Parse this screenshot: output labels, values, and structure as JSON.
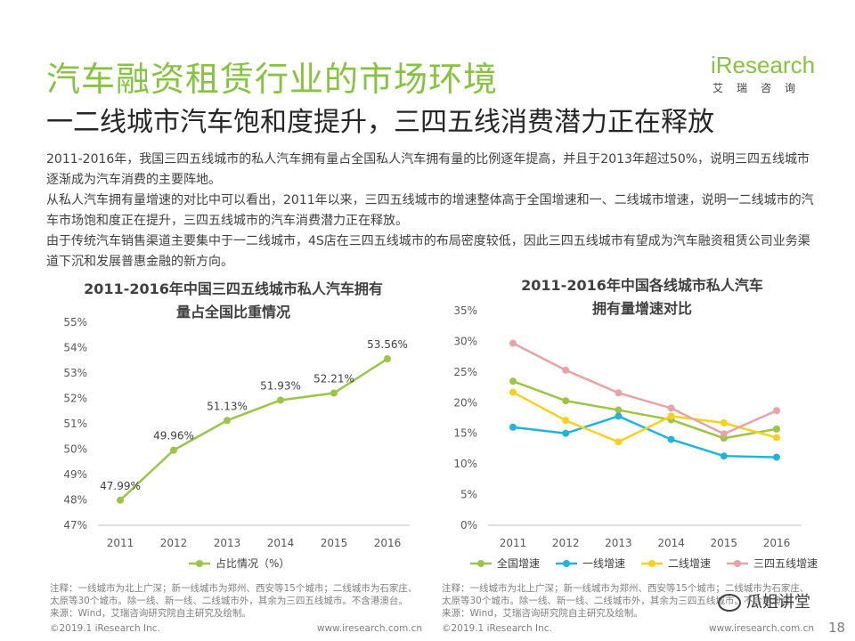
{
  "header": {
    "title": "汽车融资租赁行业的市场环境",
    "subtitle": "一二线城市汽车饱和度提升，三四五线消费潜力正在释放"
  },
  "logo": {
    "name": "iResearch",
    "sub": "艾瑞咨询",
    "brand_color": "#86c33e"
  },
  "paragraphs": [
    "2011-2016年，我国三四五线城市的私人汽车拥有量占全国私人汽车拥有量的比例逐年提高，并且于2013年超过50%，说明三四五线城市逐渐成为汽车消费的主要阵地。",
    "从私人汽车拥有量增速的对比中可以看出，2011年以来，三四五线城市的增速整体高于全国增速和一、二线城市增速，说明一二线城市的汽车市场饱和度正在提升，三四五线城市的汽车消费潜力正在释放。",
    "由于传统汽车销售渠道主要集中于一二线城市，4S店在三四五线城市的布局密度较低，因此三四五线城市有望成为汽车融资租赁公司业务渠道下沉和发展普惠金融的新方向。"
  ],
  "chart_data": [
    {
      "type": "line",
      "title_lines": [
        "2011-2016年中国三四五线城市私人汽车拥有",
        "量占全国比重情况"
      ],
      "x": [
        "2011",
        "2012",
        "2013",
        "2014",
        "2015",
        "2016"
      ],
      "series": [
        {
          "name": "占比情况（%）",
          "color": "#9dc545",
          "values": [
            47.99,
            49.96,
            51.13,
            51.93,
            52.21,
            53.56
          ],
          "labels": [
            "47.99%",
            "49.96%",
            "51.13%",
            "51.93%",
            "52.21%",
            "53.56%"
          ]
        }
      ],
      "ylim": [
        47,
        55
      ],
      "yticks": [
        "47%",
        "48%",
        "49%",
        "50%",
        "51%",
        "52%",
        "53%",
        "54%",
        "55%"
      ],
      "grid": false,
      "legend": "bottom"
    },
    {
      "type": "line",
      "title_lines": [
        "2011-2016年中国各线城市私人汽车",
        "拥有量增速对比"
      ],
      "x": [
        "2011",
        "2012",
        "2013",
        "2014",
        "2015",
        "2016"
      ],
      "series": [
        {
          "name": "全国增速",
          "color": "#9dc545",
          "values": [
            23.5,
            20.3,
            18.8,
            17.2,
            14.2,
            15.7
          ]
        },
        {
          "name": "一线增速",
          "color": "#1fb4dc",
          "values": [
            16.0,
            15.0,
            17.8,
            14.0,
            11.3,
            11.1
          ]
        },
        {
          "name": "二线增速",
          "color": "#f7d11b",
          "values": [
            21.7,
            17.1,
            13.6,
            17.8,
            16.7,
            14.3
          ]
        },
        {
          "name": "三四五线增速",
          "color": "#e6a3a8",
          "values": [
            29.7,
            25.3,
            21.6,
            19.1,
            14.9,
            18.7
          ]
        }
      ],
      "ylim": [
        0,
        35
      ],
      "yticks": [
        "0%",
        "5%",
        "10%",
        "15%",
        "20%",
        "25%",
        "30%",
        "35%"
      ],
      "grid": false,
      "legend": "bottom"
    }
  ],
  "notes": {
    "left": [
      "注释：一线城市为北上广深；新一线城市为郑州、西安等15个城市；二线城市为石家庄、",
      "太原等30个城市。除一线、新一线、二线城市外，其余为三四五线城市。不含港澳台。",
      "来源：Wind，艾瑞咨询研究院自主研究及绘制。"
    ],
    "right": [
      "注释：一线城市为北上广深；新一线城市为郑州、西安等15个城市；二线城市为石家庄、",
      "太原等30个城市。除一线、新一线、二线城市外，其余为三四五线城市。不含港澳台。",
      "来源：Wind，艾瑞咨询研究院自主研究及绘制。"
    ]
  },
  "footer": {
    "copyright_left": "©2019.1 iResearch Inc.",
    "site_left": "www.iresearch.com.cn",
    "copyright_right": "©2019.1 iResearch Inc.",
    "site_right": "www.iresearch.com.cn",
    "page": "18"
  },
  "watermark": {
    "text": "瓜姐讲堂",
    "icon": "wechat-icon"
  }
}
